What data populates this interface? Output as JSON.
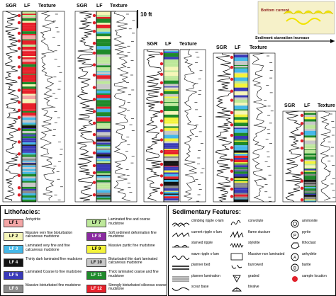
{
  "column_headers": {
    "sgr": "SGR",
    "lf": "LF",
    "texture": "Texture"
  },
  "scale": {
    "label": "10 ft"
  },
  "inset": {
    "bottom_current": "Bottom current",
    "starvation": "Sediment starvation increase"
  },
  "colors": {
    "lf1": "#f4a6a6",
    "lf2": "#f6f6b8",
    "lf3": "#45b8e8",
    "lf4": "#141414",
    "lf5": "#3a3ab8",
    "lf6": "#8c8c8c",
    "lf7": "#bde89a",
    "lf8": "#8a2aa0",
    "lf9": "#f4f43c",
    "lf10": "#c8c8c8",
    "lf11": "#1e8a2a",
    "lf12": "#e8202a",
    "sample": "#e0202a"
  },
  "lithofacies": {
    "title": "Lithofacies:",
    "items": [
      {
        "code": "LF 1",
        "desc": "Anhydrite",
        "color": "#f4a6a6",
        "text_color": "#000"
      },
      {
        "code": "LF 2",
        "desc": "Massive very fine bioturbation calcareous mudstone",
        "color": "#f6f6b8",
        "text_color": "#000"
      },
      {
        "code": "LF 3",
        "desc": "Laminated very fine and fine calcareous mudstone",
        "color": "#45b8e8",
        "text_color": "#fff"
      },
      {
        "code": "LF 4",
        "desc": "Thinly dark laminated fine mudstone",
        "color": "#141414",
        "text_color": "#fff"
      },
      {
        "code": "LF 5",
        "desc": "Laminated Coarse to fine mudstone",
        "color": "#3a3ab8",
        "text_color": "#fff"
      },
      {
        "code": "LF 6",
        "desc": "Massive-bioturbated fine mudstone",
        "color": "#8c8c8c",
        "text_color": "#fff"
      },
      {
        "code": "LF 7",
        "desc": "Laminated fine and coarse mudstone",
        "color": "#bde89a",
        "text_color": "#000"
      },
      {
        "code": "LF 8",
        "desc": "Soft sediment deformation fine mudstone",
        "color": "#8a2aa0",
        "text_color": "#fff"
      },
      {
        "code": "LF 9",
        "desc": "Massive pyritic fine mudstone",
        "color": "#f4f43c",
        "text_color": "#000"
      },
      {
        "code": "LF 10",
        "desc": "Bioturbated thin dark laminated calcareous mudstone",
        "color": "#c8c8c8",
        "text_color": "#000"
      },
      {
        "code": "LF 11",
        "desc": "Thick laminated coarse and fine mudstone",
        "color": "#1e8a2a",
        "text_color": "#fff"
      },
      {
        "code": "LF 12",
        "desc": "Strongly bioturbated siliceous coarse mudstone",
        "color": "#e8202a",
        "text_color": "#fff"
      }
    ]
  },
  "sedimentary": {
    "title": "Sedimentary Features:",
    "items": [
      {
        "label": "climbing ripple x-lam",
        "icon": "climbing-ripple"
      },
      {
        "label": "current ripple x-lam",
        "icon": "current-ripple"
      },
      {
        "label": "starved ripple",
        "icon": "starved-ripple"
      },
      {
        "label": "wave ripple x-lam",
        "icon": "wave-ripple"
      },
      {
        "label": "planner bed",
        "icon": "planar-bed"
      },
      {
        "label": "planner lamination",
        "icon": "planar-lamination"
      },
      {
        "label": "scour base",
        "icon": "scour-base"
      },
      {
        "label": "convolute",
        "icon": "convolute"
      },
      {
        "label": "flame stucture",
        "icon": "flame-structure"
      },
      {
        "label": "stylolite",
        "icon": "stylolite"
      },
      {
        "label": "Massive-non laminated",
        "icon": "massive"
      },
      {
        "label": "burrowed",
        "icon": "burrowed"
      },
      {
        "label": "graded",
        "icon": "graded"
      },
      {
        "label": "bivalve",
        "icon": "bivalve"
      },
      {
        "label": "ammonite",
        "icon": "ammonite"
      },
      {
        "label": "pyrite",
        "icon": "pyrite"
      },
      {
        "label": "lithoclast",
        "icon": "lithoclast"
      },
      {
        "label": "anhydrite",
        "icon": "anhydrite-symbol"
      },
      {
        "label": "barite",
        "icon": "barite"
      },
      {
        "label": "sample location",
        "icon": "sample-location"
      }
    ]
  }
}
